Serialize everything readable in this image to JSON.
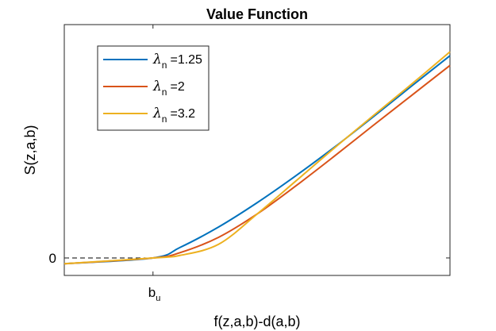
{
  "chart_data": {
    "type": "line",
    "title": "Value Function",
    "xlabel": "f(z,a,b)-d(a,b)",
    "ylabel": "S(z,a,b)",
    "x_ticks": [
      {
        "label": "b",
        "sub": "u",
        "x": 0.23
      }
    ],
    "y_ticks": [
      {
        "label": "0",
        "y": 0
      }
    ],
    "xlim": [
      0,
      1
    ],
    "ylim": [
      -0.09,
      1.2
    ],
    "reference_line": {
      "style": "dashed",
      "y": 0,
      "x_to": 0.23
    },
    "legend": {
      "position": "top-left",
      "boxed": true
    },
    "series": [
      {
        "name": "λn =1.25",
        "greek": "λ",
        "greek_sub": "n",
        "value_text": "=1.25",
        "color": "#0072bd",
        "x": [
          0,
          0.23,
          0.3,
          0.4,
          0.5,
          0.6,
          0.7,
          0.8,
          0.9,
          1.0
        ],
        "y": [
          -0.03,
          0.0,
          0.054,
          0.159,
          0.284,
          0.422,
          0.569,
          0.724,
          0.883,
          1.04
        ]
      },
      {
        "name": "λn =2",
        "greek": "λ",
        "greek_sub": "n",
        "value_text": "=2",
        "color": "#d95319",
        "x": [
          0,
          0.23,
          0.3,
          0.4,
          0.5,
          0.6,
          0.7,
          0.8,
          0.9,
          1.0
        ],
        "y": [
          -0.03,
          0.0,
          0.027,
          0.106,
          0.226,
          0.37,
          0.523,
          0.68,
          0.835,
          0.99
        ]
      },
      {
        "name": "λn =3.2",
        "greek": "λ",
        "greek_sub": "n",
        "value_text": "=3.2",
        "color": "#edb120",
        "x": [
          0,
          0.23,
          0.3,
          0.4,
          0.5,
          0.6,
          0.7,
          0.8,
          0.9,
          1.0
        ],
        "y": [
          -0.03,
          0.0,
          0.013,
          0.07,
          0.226,
          0.395,
          0.565,
          0.73,
          0.893,
          1.06
        ]
      }
    ]
  }
}
